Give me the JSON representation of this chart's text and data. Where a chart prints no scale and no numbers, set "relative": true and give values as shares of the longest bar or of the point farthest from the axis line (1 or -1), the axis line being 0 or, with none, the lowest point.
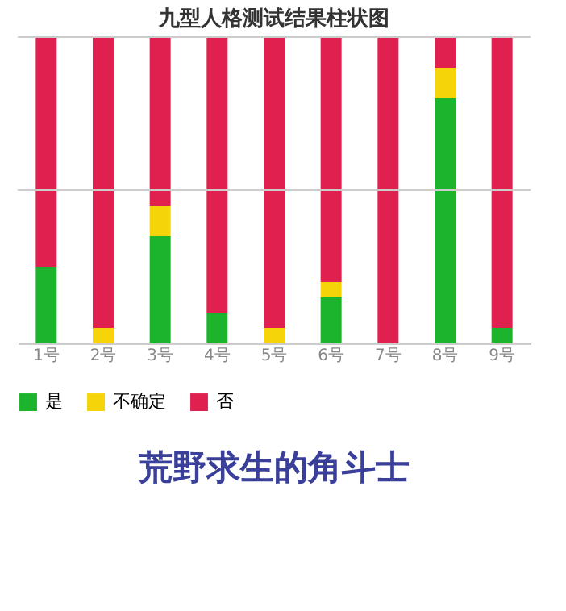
{
  "chart_data": {
    "type": "bar",
    "title": "九型人格测试结果柱状图",
    "stacked": true,
    "relative": true,
    "legend": "bottom",
    "categories": [
      "1号",
      "2号",
      "3号",
      "4号",
      "5号",
      "6号",
      "7号",
      "8号",
      "9号"
    ],
    "series": [
      {
        "name": "是",
        "color": "#1db42d",
        "values": [
          0.25,
          0,
          0.35,
          0.1,
          0,
          0.15,
          0,
          0.8,
          0.05
        ]
      },
      {
        "name": "不确定",
        "color": "#f5d40a",
        "values": [
          0,
          0.05,
          0.1,
          0,
          0.05,
          0.05,
          0,
          0.1,
          0
        ]
      },
      {
        "name": "否",
        "color": "#e0204f",
        "values": [
          0.75,
          0.95,
          0.55,
          0.9,
          0.95,
          0.8,
          1,
          0.1,
          0.95
        ]
      }
    ],
    "ref_lines": [
      {
        "axis": "y",
        "value": 0.5,
        "color": "#cccccc"
      },
      {
        "axis": "y",
        "value": 1,
        "color": "#cccccc"
      }
    ],
    "annotations": [
      "荒野求生的角斗士"
    ]
  }
}
